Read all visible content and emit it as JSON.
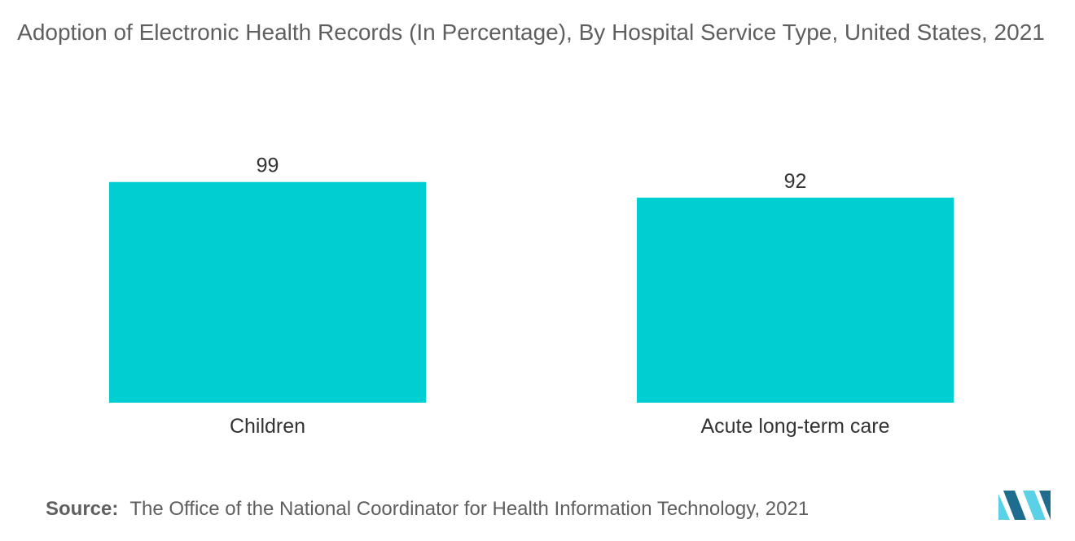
{
  "chart_data": {
    "type": "bar",
    "title": "Adoption of Electronic Health Records (In Percentage), By Hospital Service Type, United States, 2021",
    "categories": [
      "Children",
      "Acute long-term care"
    ],
    "values": [
      99,
      92
    ],
    "xlabel": "",
    "ylabel": "",
    "ylim": [
      0,
      100
    ],
    "grid": false,
    "bar_color": "#00ced1"
  },
  "source": {
    "label": "Source:",
    "text": "The Office of the National Coordinator for Health Information Technology, 2021"
  },
  "logo": {
    "icon": "mordor-intelligence-logo-icon",
    "color_light": "#5ad1e6",
    "color_dark": "#1f6d8e"
  }
}
